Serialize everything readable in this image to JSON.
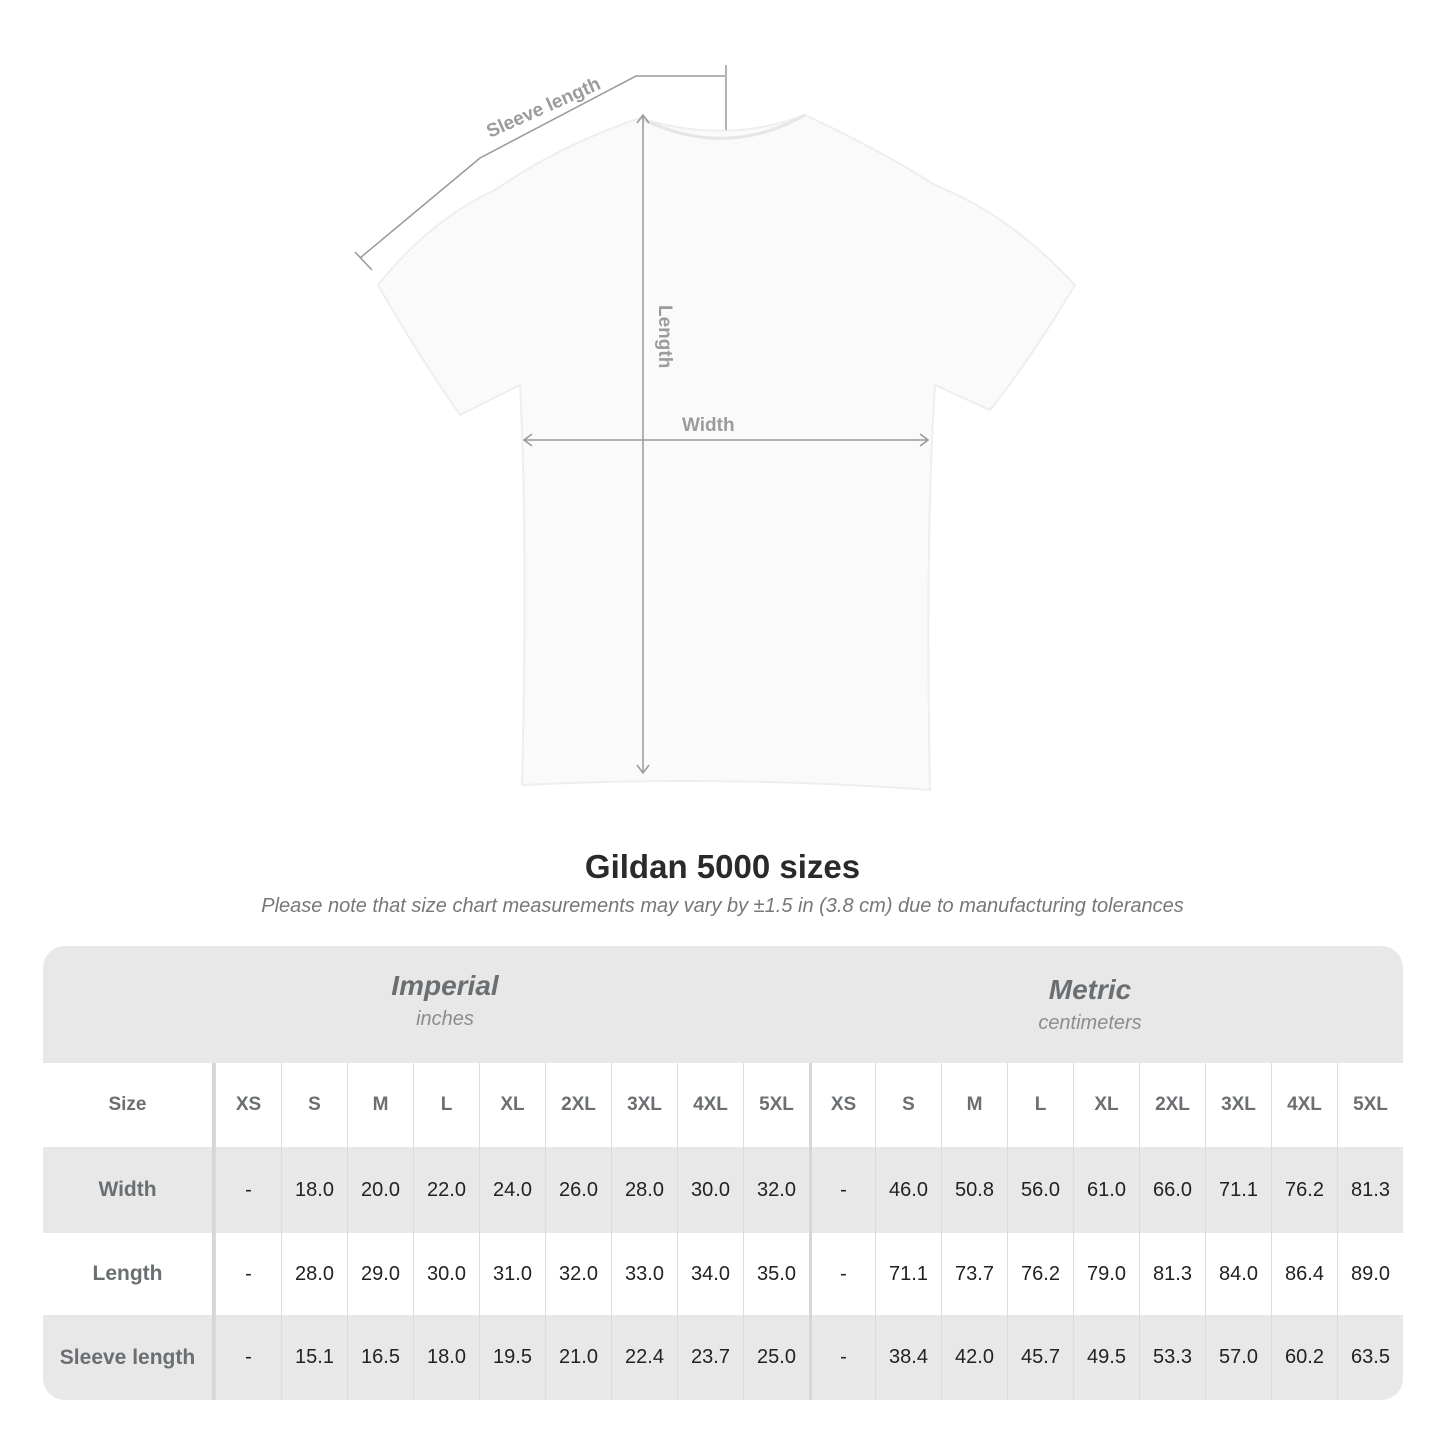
{
  "diagram": {
    "sleeve_label": "Sleeve length",
    "length_label": "Length",
    "width_label": "Width",
    "line_color": "#999999"
  },
  "title": "Gildan 5000 sizes",
  "note": "Please note that size chart measurements may vary by ±1.5 in (3.8 cm) due to manufacturing tolerances",
  "table": {
    "imperial": {
      "name": "Imperial",
      "unit": "inches"
    },
    "metric": {
      "name": "Metric",
      "unit": "centimeters"
    },
    "size_label": "Size",
    "sizes": [
      "XS",
      "S",
      "M",
      "L",
      "XL",
      "2XL",
      "3XL",
      "4XL",
      "5XL"
    ],
    "rows": [
      {
        "label": "Width",
        "imperial": [
          "-",
          "18.0",
          "20.0",
          "22.0",
          "24.0",
          "26.0",
          "28.0",
          "30.0",
          "32.0"
        ],
        "metric": [
          "-",
          "46.0",
          "50.8",
          "56.0",
          "61.0",
          "66.0",
          "71.1",
          "76.2",
          "81.3"
        ]
      },
      {
        "label": "Length",
        "imperial": [
          "-",
          "28.0",
          "29.0",
          "30.0",
          "31.0",
          "32.0",
          "33.0",
          "34.0",
          "35.0"
        ],
        "metric": [
          "-",
          "71.1",
          "73.7",
          "76.2",
          "79.0",
          "81.3",
          "84.0",
          "86.4",
          "89.0"
        ]
      },
      {
        "label": "Sleeve length",
        "imperial": [
          "-",
          "15.1",
          "16.5",
          "18.0",
          "19.5",
          "21.0",
          "22.4",
          "23.7",
          "25.0"
        ],
        "metric": [
          "-",
          "38.4",
          "42.0",
          "45.7",
          "49.5",
          "53.3",
          "57.0",
          "60.2",
          "63.5"
        ]
      }
    ]
  }
}
